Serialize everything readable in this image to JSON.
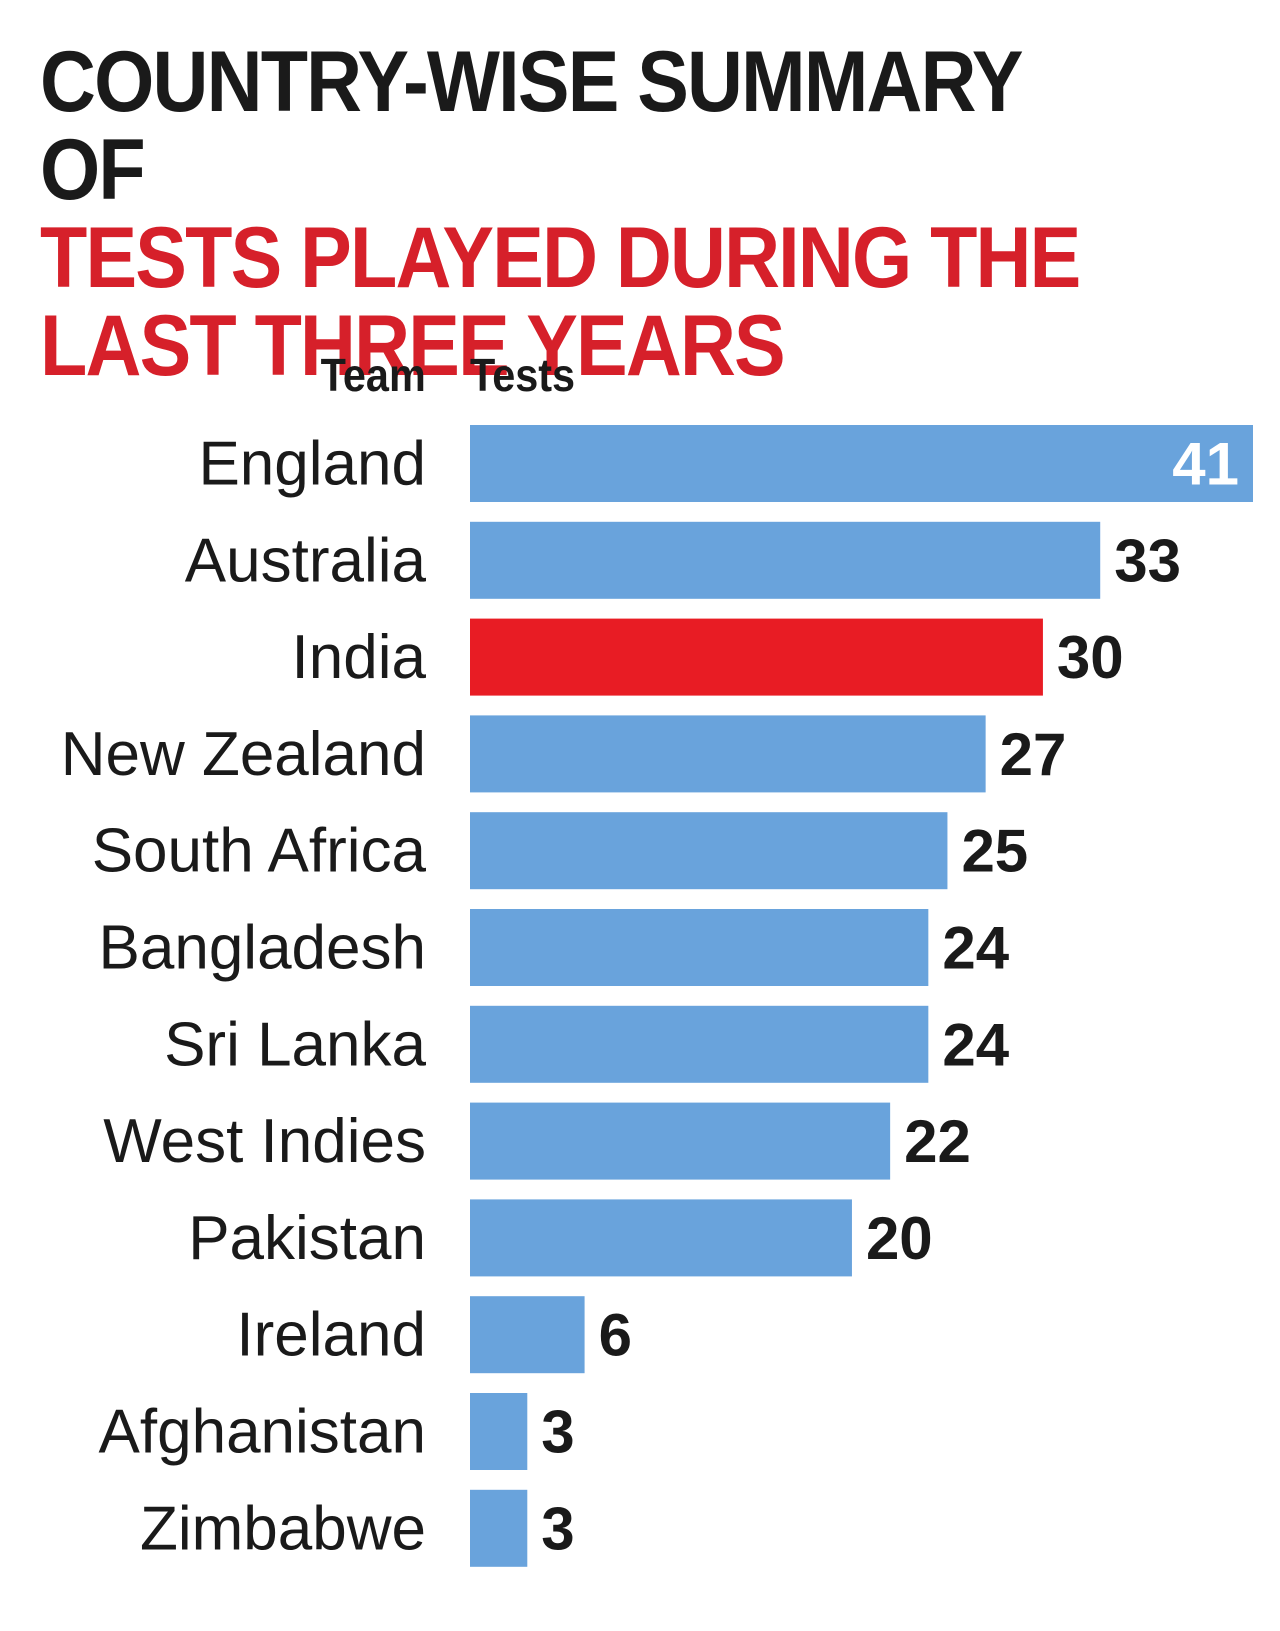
{
  "title": {
    "line1": "COUNTRY-WISE SUMMARY OF",
    "line2": "TESTS PLAYED DURING THE",
    "line3": "LAST THREE YEARS"
  },
  "chart_data": {
    "type": "bar",
    "orientation": "horizontal",
    "category_header": "Team",
    "value_header": "Tests",
    "categories": [
      "England",
      "Australia",
      "India",
      "New Zealand",
      "South Africa",
      "Bangladesh",
      "Sri Lanka",
      "West Indies",
      "Pakistan",
      "Ireland",
      "Afghanistan",
      "Zimbabwe"
    ],
    "values": [
      41,
      33,
      30,
      27,
      25,
      24,
      24,
      22,
      20,
      6,
      3,
      3
    ],
    "highlight": "India",
    "colors": {
      "bar": "#69a3dc",
      "highlight": "#e81c24",
      "text": "#1a1a1a",
      "title_accent": "#d6202a"
    },
    "grid": false,
    "legend": "none"
  }
}
